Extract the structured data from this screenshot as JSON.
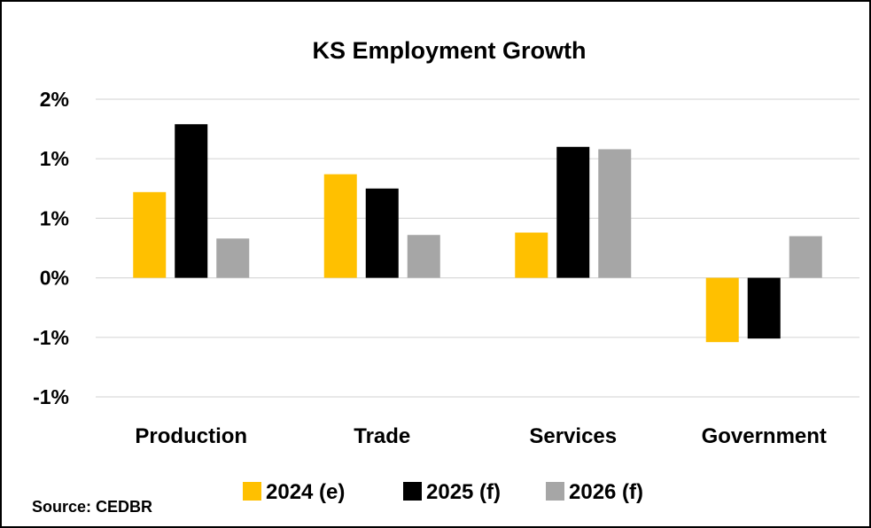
{
  "chart_data": {
    "type": "bar",
    "title": "KS Employment Growth",
    "xlabel": "",
    "ylabel": "",
    "categories": [
      "Production",
      "Trade",
      "Services",
      "Government"
    ],
    "series": [
      {
        "name": "2024 (e)",
        "color": "#FFC000",
        "values": [
          0.72,
          0.87,
          0.38,
          -0.54
        ]
      },
      {
        "name": "2025 (f)",
        "color": "#000000",
        "values": [
          1.29,
          0.75,
          1.1,
          -0.51
        ]
      },
      {
        "name": "2026 (f)",
        "color": "#A6A6A6",
        "values": [
          0.33,
          0.36,
          1.08,
          0.35
        ]
      }
    ],
    "ylim": [
      -1.0,
      1.5
    ],
    "yticks": [
      {
        "value": 1.5,
        "label": "2%"
      },
      {
        "value": 1.0,
        "label": "1%"
      },
      {
        "value": 0.5,
        "label": "1%"
      },
      {
        "value": 0.0,
        "label": "0%"
      },
      {
        "value": -0.5,
        "label": "-1%"
      },
      {
        "value": -1.0,
        "label": "-1%"
      }
    ],
    "grid": true,
    "legend_position": "bottom"
  },
  "source": "Source: CEDBR"
}
